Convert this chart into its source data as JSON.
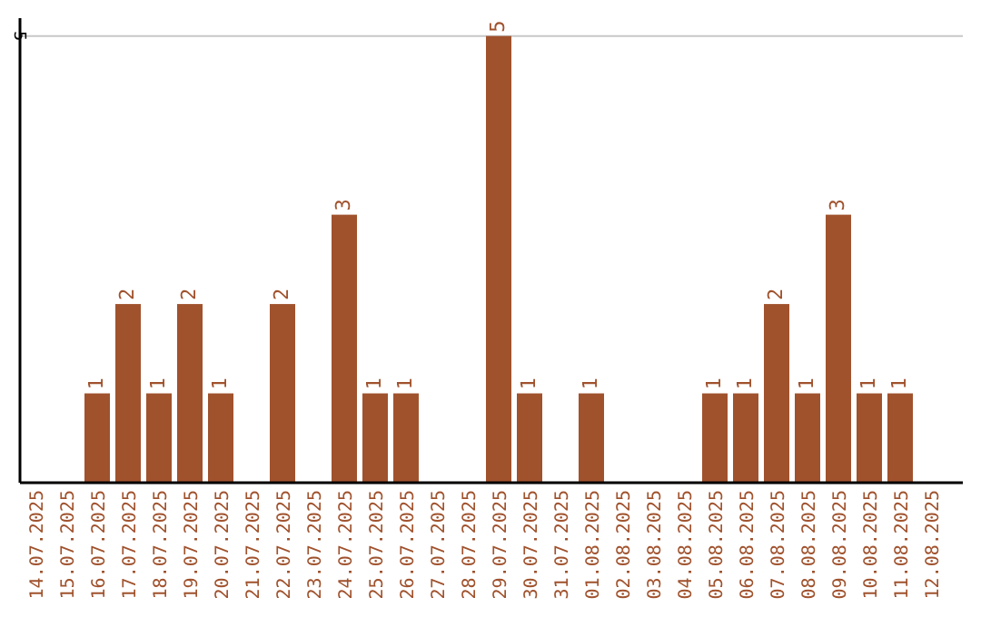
{
  "chart_data": {
    "type": "bar",
    "categories": [
      "14.07.2025",
      "15.07.2025",
      "16.07.2025",
      "17.07.2025",
      "18.07.2025",
      "19.07.2025",
      "20.07.2025",
      "21.07.2025",
      "22.07.2025",
      "23.07.2025",
      "24.07.2025",
      "25.07.2025",
      "26.07.2025",
      "27.07.2025",
      "28.07.2025",
      "29.07.2025",
      "30.07.2025",
      "31.07.2025",
      "01.08.2025",
      "02.08.2025",
      "03.08.2025",
      "04.08.2025",
      "05.08.2025",
      "06.08.2025",
      "07.08.2025",
      "08.08.2025",
      "09.08.2025",
      "10.08.2025",
      "11.08.2025",
      "12.08.2025"
    ],
    "values": [
      0,
      0,
      1,
      2,
      1,
      2,
      1,
      0,
      2,
      0,
      3,
      1,
      1,
      0,
      0,
      5,
      1,
      0,
      1,
      0,
      0,
      0,
      1,
      1,
      2,
      1,
      3,
      1,
      1,
      0
    ],
    "value_labels": [
      null,
      null,
      "1",
      "2",
      "1",
      "2",
      "1",
      null,
      "2",
      null,
      "3",
      "1",
      "1",
      null,
      null,
      "5",
      "1",
      null,
      "1",
      null,
      null,
      null,
      "1",
      "1",
      "2",
      "1",
      "3",
      "1",
      "1",
      null
    ],
    "color": "#a0522d",
    "ylim": [
      0,
      5.2
    ],
    "yticks": [
      5
    ],
    "grid": "y"
  }
}
